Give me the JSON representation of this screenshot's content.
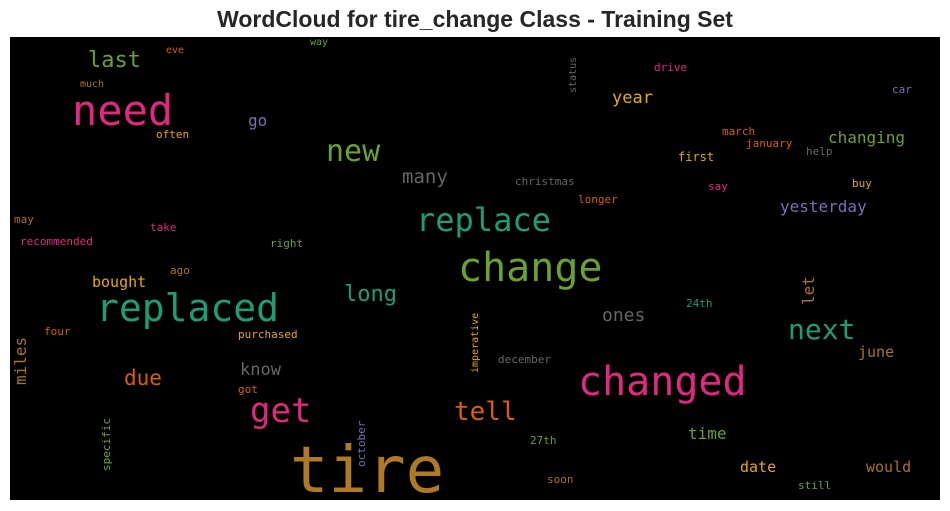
{
  "chart_data": {
    "type": "wordcloud",
    "title": "WordCloud for tire_change Class - Training Set",
    "background": "#000000",
    "words": [
      {
        "text": "tire",
        "color": "#b07a25",
        "weight": 1.0
      },
      {
        "text": "change",
        "color": "#6aa22f",
        "weight": 0.78
      },
      {
        "text": "changed",
        "color": "#e0287f",
        "weight": 0.76
      },
      {
        "text": "replaced",
        "color": "#1b9e77",
        "weight": 0.72
      },
      {
        "text": "need",
        "color": "#e0287f",
        "weight": 0.72
      },
      {
        "text": "replace",
        "color": "#1b9e77",
        "weight": 0.58
      },
      {
        "text": "get",
        "color": "#e0287f",
        "weight": 0.58
      },
      {
        "text": "new",
        "color": "#6aa22f",
        "weight": 0.52
      },
      {
        "text": "next",
        "color": "#1b9e77",
        "weight": 0.5
      },
      {
        "text": "tell",
        "color": "#d95f02",
        "weight": 0.44
      },
      {
        "text": "long",
        "color": "#1b9e77",
        "weight": 0.4
      },
      {
        "text": "last",
        "color": "#6aa22f",
        "weight": 0.4
      },
      {
        "text": "due",
        "color": "#d95f02",
        "weight": 0.38
      },
      {
        "text": "many",
        "color": "#666666",
        "weight": 0.35
      },
      {
        "text": "yesterday",
        "color": "#7570b3",
        "weight": 0.3
      },
      {
        "text": "ones",
        "color": "#666666",
        "weight": 0.3
      },
      {
        "text": "year",
        "color": "#e6ab02",
        "weight": 0.28
      },
      {
        "text": "know",
        "color": "#666666",
        "weight": 0.28
      },
      {
        "text": "changing",
        "color": "#6aa22f",
        "weight": 0.26
      },
      {
        "text": "bought",
        "color": "#e6ab02",
        "weight": 0.26
      },
      {
        "text": "time",
        "color": "#6aa22f",
        "weight": 0.26
      },
      {
        "text": "miles",
        "color": "#a6761d",
        "weight": 0.26
      },
      {
        "text": "date",
        "color": "#e6ab02",
        "weight": 0.26
      },
      {
        "text": "would",
        "color": "#a6761d",
        "weight": 0.26
      },
      {
        "text": "go",
        "color": "#7570b3",
        "weight": 0.26
      },
      {
        "text": "let",
        "color": "#a6761d",
        "weight": 0.24
      },
      {
        "text": "june",
        "color": "#a6761d",
        "weight": 0.24
      },
      {
        "text": "first",
        "color": "#e6ab02",
        "weight": 0.16
      },
      {
        "text": "christmas",
        "color": "#666666",
        "weight": 0.15
      },
      {
        "text": "purchased",
        "color": "#e6ab02",
        "weight": 0.15
      },
      {
        "text": "imperative",
        "color": "#e6ab02",
        "weight": 0.14
      },
      {
        "text": "january",
        "color": "#d95f02",
        "weight": 0.15
      },
      {
        "text": "march",
        "color": "#d95f02",
        "weight": 0.15
      },
      {
        "text": "drive",
        "color": "#e0287f",
        "weight": 0.15
      },
      {
        "text": "car",
        "color": "#7570b3",
        "weight": 0.15
      },
      {
        "text": "help",
        "color": "#666666",
        "weight": 0.14
      },
      {
        "text": "buy",
        "color": "#e6ab02",
        "weight": 0.15
      },
      {
        "text": "say",
        "color": "#e0287f",
        "weight": 0.14
      },
      {
        "text": "longer",
        "color": "#d95f02",
        "weight": 0.14
      },
      {
        "text": "status",
        "color": "#666666",
        "weight": 0.14
      },
      {
        "text": "way",
        "color": "#6aa22f",
        "weight": 0.13
      },
      {
        "text": "eve",
        "color": "#d95f02",
        "weight": 0.13
      },
      {
        "text": "much",
        "color": "#a6761d",
        "weight": 0.13
      },
      {
        "text": "often",
        "color": "#e6ab02",
        "weight": 0.14
      },
      {
        "text": "may",
        "color": "#a6761d",
        "weight": 0.14
      },
      {
        "text": "recommended",
        "color": "#e0287f",
        "weight": 0.14
      },
      {
        "text": "take",
        "color": "#e0287f",
        "weight": 0.14
      },
      {
        "text": "right",
        "color": "#6aa22f",
        "weight": 0.14
      },
      {
        "text": "ago",
        "color": "#a6761d",
        "weight": 0.14
      },
      {
        "text": "four",
        "color": "#d95f02",
        "weight": 0.14
      },
      {
        "text": "got",
        "color": "#d95f02",
        "weight": 0.14
      },
      {
        "text": "specific",
        "color": "#6aa22f",
        "weight": 0.14
      },
      {
        "text": "october",
        "color": "#7570b3",
        "weight": 0.14
      },
      {
        "text": "december",
        "color": "#666666",
        "weight": 0.14
      },
      {
        "text": "24th",
        "color": "#1b9e77",
        "weight": 0.14
      },
      {
        "text": "27th",
        "color": "#6aa22f",
        "weight": 0.14
      },
      {
        "text": "soon",
        "color": "#a6761d",
        "weight": 0.14
      },
      {
        "text": "still",
        "color": "#6aa22f",
        "weight": 0.14
      }
    ]
  }
}
